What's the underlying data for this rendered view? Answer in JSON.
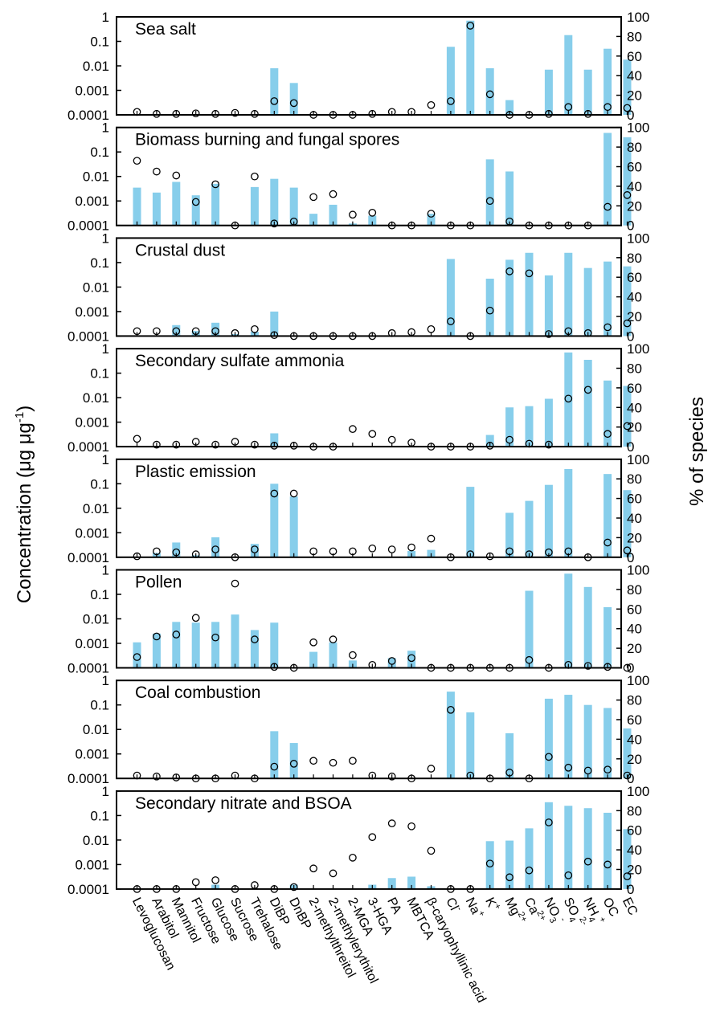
{
  "figure": {
    "ylabel_left_prefix": "Concentration (μg μg",
    "ylabel_left_sup": "-1",
    "ylabel_left_suffix": ")",
    "ylabel_right": "% of species"
  },
  "colors": {
    "bar": "#87CEEB",
    "marker_stroke": "#000000",
    "axis": "#000000"
  },
  "chart_data": {
    "type": "bar",
    "categories": [
      "Levoglucosan",
      "Arabitol",
      "Mannitol",
      "Fructose",
      "Glucose",
      "Sucrose",
      "Trehalose",
      "DiBP",
      "DnBP",
      "2-methylthreitol",
      "2-methylerythitol",
      "2-MGA",
      "3-HGA",
      "PA",
      "MBTCA",
      "β-caryophyllinic acid",
      "Cl⁻",
      "Na⁺",
      "K⁺",
      "Mg²⁺",
      "Ca²⁺",
      "NO₃⁻",
      "SO₄²⁻",
      "NH₄⁺",
      "OC",
      "EC"
    ],
    "category_label_parts": [
      [
        "Levoglucosan"
      ],
      [
        "Arabitol"
      ],
      [
        "Mannitol"
      ],
      [
        "Fructose"
      ],
      [
        "Glucose"
      ],
      [
        "Sucrose"
      ],
      [
        "Trehalose"
      ],
      [
        "DiBP"
      ],
      [
        "DnBP"
      ],
      [
        "2-methylthreitol"
      ],
      [
        "2-methylerythitol"
      ],
      [
        "2-MGA"
      ],
      [
        "3-HGA"
      ],
      [
        "PA"
      ],
      [
        "MBTCA"
      ],
      [
        "β-caryophyllinic acid"
      ],
      [
        "Cl",
        "-"
      ],
      [
        "Na",
        "+"
      ],
      [
        "K",
        "+"
      ],
      [
        "Mg",
        "2+"
      ],
      [
        "Ca",
        "2+"
      ],
      [
        "NO",
        "3",
        "-"
      ],
      [
        "SO",
        "4",
        "2-"
      ],
      [
        "NH",
        "4",
        "+"
      ],
      [
        "OC"
      ],
      [
        "EC"
      ]
    ],
    "left_axis": {
      "scale": "log",
      "range": [
        0.0001,
        1
      ],
      "ticks": [
        "1",
        "0.1",
        "0.01",
        "0.001",
        "0.0001"
      ]
    },
    "right_axis": {
      "scale": "linear",
      "range": [
        0,
        100
      ],
      "ticks": [
        "100",
        "80",
        "60",
        "40",
        "20",
        "0"
      ]
    },
    "panels": [
      {
        "title": "Sea salt",
        "bars": [
          0.0001,
          0.0001,
          0.0001,
          0.0001,
          0.0001,
          0.0001,
          0.0001,
          0.008,
          0.002,
          0.0001,
          0.0001,
          0.0001,
          0.0001,
          0.0001,
          0.0001,
          0.0001,
          0.06,
          0.7,
          0.008,
          0.0004,
          0.0001,
          0.007,
          0.18,
          0.007,
          0.05,
          0.018
        ],
        "percent": [
          3,
          1,
          1,
          1.5,
          1,
          2,
          1,
          14,
          12,
          0,
          0,
          0,
          1,
          3,
          3,
          10,
          14,
          91,
          21,
          0,
          0,
          1,
          8,
          1,
          8,
          7
        ]
      },
      {
        "title": "Biomass burning and fungal spores",
        "bars": [
          0.0035,
          0.0022,
          0.006,
          0.0017,
          0.005,
          0.0001,
          0.0037,
          0.008,
          0.0035,
          0.0003,
          0.0007,
          0.00012,
          0.00025,
          0.0001,
          0.0001,
          0.0003,
          0.0001,
          0.0001,
          0.05,
          0.016,
          0.0001,
          0.0001,
          0.0001,
          0.0001,
          0.6,
          0.4
        ],
        "percent": [
          66,
          55,
          51,
          24,
          42,
          0,
          50,
          2,
          4,
          29,
          32,
          11,
          13,
          0,
          0,
          12,
          0,
          0,
          25,
          4,
          0,
          0,
          0,
          0,
          19,
          31
        ]
      },
      {
        "title": "Crustal dust",
        "bars": [
          0.0001,
          0.0001,
          0.00028,
          0.00016,
          0.00035,
          0.00012,
          0.00015,
          0.001,
          0.0001,
          0.0001,
          0.0001,
          0.0001,
          0.0001,
          0.0001,
          0.0001,
          0.0001,
          0.14,
          0.0001,
          0.022,
          0.13,
          0.25,
          0.03,
          0.25,
          0.06,
          0.11,
          0.07
        ],
        "percent": [
          5,
          5,
          5,
          5,
          5,
          3,
          7,
          1,
          0,
          0,
          0,
          0,
          0,
          3,
          4,
          7,
          15,
          0,
          26,
          66,
          64,
          2,
          5,
          3,
          9,
          13
        ]
      },
      {
        "title": "Secondary sulfate ammonia",
        "bars": [
          0.0001,
          0.0001,
          0.0001,
          0.0001,
          0.0001,
          0.0001,
          0.0001,
          0.00035,
          0.0001,
          0.0001,
          0.0001,
          0.0001,
          0.0001,
          0.0001,
          0.0001,
          0.0001,
          0.0001,
          0.0001,
          0.0003,
          0.004,
          0.0045,
          0.009,
          0.7,
          0.35,
          0.05,
          0.03
        ],
        "percent": [
          8,
          2,
          2,
          5,
          2,
          5,
          2,
          1,
          1,
          0,
          0,
          18,
          13,
          7,
          4,
          0,
          0,
          0,
          1,
          7,
          3,
          2,
          49,
          58,
          13,
          21
        ]
      },
      {
        "title": "Plastic emission",
        "bars": [
          0.0001,
          0.00015,
          0.0004,
          0.00012,
          0.00065,
          0.0001,
          0.00035,
          0.1,
          0.03,
          0.0001,
          0.0001,
          0.0001,
          0.0001,
          0.0001,
          0.00018,
          0.0002,
          0.0001,
          0.075,
          0.0001,
          0.0065,
          0.02,
          0.09,
          0.4,
          0.0001,
          0.25,
          0.055
        ],
        "percent": [
          1,
          6,
          5,
          3,
          8,
          0,
          8,
          65,
          65,
          6,
          6,
          6,
          9,
          8,
          10,
          19,
          0,
          3,
          1,
          6,
          3,
          5,
          6,
          0,
          15,
          7
        ]
      },
      {
        "title": "Pollen",
        "bars": [
          0.0011,
          0.0025,
          0.0075,
          0.007,
          0.0075,
          0.015,
          0.0035,
          0.007,
          0.0001,
          0.00045,
          0.0011,
          0.0002,
          0.0001,
          0.00025,
          0.0005,
          0.0001,
          0.0001,
          0.0001,
          0.0001,
          0.0001,
          0.14,
          0.0001,
          0.7,
          0.2,
          0.03,
          0.0001
        ],
        "percent": [
          11,
          32,
          34,
          51,
          31,
          86,
          29,
          1,
          0,
          26,
          29,
          13,
          3,
          7,
          10,
          0,
          0,
          0,
          0,
          0,
          8,
          0,
          3,
          2,
          1,
          0
        ]
      },
      {
        "title": "Coal combustion",
        "bars": [
          0.0001,
          0.0001,
          0.0001,
          0.0001,
          0.0001,
          0.0001,
          0.0001,
          0.0085,
          0.0028,
          0.0001,
          0.0001,
          0.0001,
          0.0001,
          0.0001,
          0.0001,
          0.0001,
          0.35,
          0.05,
          0.0001,
          0.007,
          0.0001,
          0.18,
          0.26,
          0.1,
          0.075,
          0.011
        ],
        "percent": [
          3,
          2,
          1,
          0,
          0,
          3,
          0,
          12,
          15,
          18,
          16,
          18,
          3,
          2,
          0,
          10,
          70,
          3,
          0,
          6,
          0,
          22,
          11,
          8,
          9,
          3
        ]
      },
      {
        "title": "Secondary nitrate and BSOA",
        "bars": [
          0.0001,
          0.0001,
          0.0001,
          0.0001,
          0.00015,
          0.0001,
          0.0001,
          0.0001,
          0.00015,
          0.0001,
          0.0001,
          0.0001,
          0.00015,
          0.00028,
          0.00032,
          0.00013,
          0.0001,
          0.0001,
          0.009,
          0.0095,
          0.03,
          0.35,
          0.25,
          0.2,
          0.13,
          0.028
        ],
        "percent": [
          0,
          0,
          0,
          7,
          9,
          0,
          4,
          0,
          2,
          21,
          16,
          32,
          53,
          67,
          64,
          39,
          0,
          0,
          26,
          12,
          19,
          68,
          14,
          28,
          25,
          13
        ]
      }
    ]
  }
}
